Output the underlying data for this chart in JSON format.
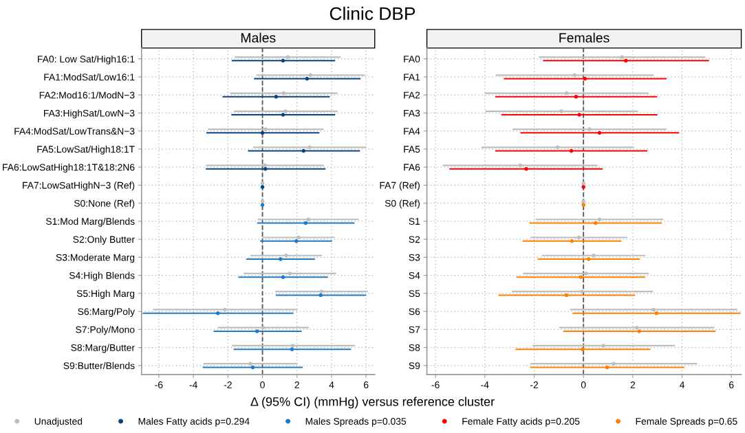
{
  "chart_data": [
    {
      "type": "scatter",
      "orientation": "horizontal",
      "title": "Males",
      "xlabel": "Δ (95% CI) (mmHg) versus reference cluster",
      "annotations": [
        "Clinic DBP"
      ],
      "categories": [
        "FA0: Low Sat/High16:1",
        "FA1:ModSat/Low16:1",
        "FA2:Mod16:1/ModN−3",
        "FA3:HighSat/LowN−3",
        "FA4:ModSat/LowTrans&N−3",
        "FA5:LowSat/High18:1T",
        "FA6:LowSatHigh18:1T&18:2N6",
        "FA7:LowSatHighN−3 (Ref)",
        "S0:None (Ref)",
        "S1:Mod Marg/Blends",
        "S2:Only Butter",
        "S3:Moderate Marg",
        "S4:High Blends",
        "S5:High Marg",
        "S6:Marg/Poly",
        "S7:Poly/Mono",
        "S8:Marg/Butter",
        "S9:Butter/Blends"
      ],
      "xlim": [
        -7,
        6.5
      ],
      "xticks": [
        -6,
        -4,
        -2,
        0,
        2,
        4,
        6
      ],
      "grid": true,
      "legend": "bottom",
      "marker": "circle",
      "ref_lines": [
        {
          "axis": "x",
          "value": 0,
          "color": "#555555",
          "line_style": "dashed"
        }
      ],
      "series": [
        {
          "name": "Unadjusted",
          "color": "#bebebe",
          "values": [
            1.47,
            2.78,
            1.23,
            1.33,
            0.18,
            2.73,
            0.14,
            0,
            0,
            2.66,
            2.08,
            1.37,
            1.58,
            3.41,
            -2.17,
            0.04,
            1.75,
            -0.7
          ],
          "errors": [
            [
              -1.61,
              4.52
            ],
            [
              -0.35,
              5.93
            ],
            [
              -1.87,
              4.35
            ],
            [
              -1.65,
              4.35
            ],
            [
              -3.16,
              3.53
            ],
            [
              -0.53,
              5.99
            ],
            [
              -3.28,
              3.56
            ],
            null,
            null,
            [
              -0.28,
              5.58
            ],
            [
              0,
              4.18
            ],
            [
              -0.7,
              3.45
            ],
            [
              -1.09,
              4.26
            ],
            [
              0.74,
              6.1
            ],
            [
              -6.34,
              2.03
            ],
            [
              -2.59,
              2.69
            ],
            [
              -1.78,
              5.36
            ],
            [
              -3.42,
              2.03
            ]
          ]
        },
        {
          "name": "Males Fatty acids p=0.294",
          "color": "#08457e",
          "values": [
            1.19,
            2.58,
            0.79,
            1.19,
            0,
            2.38,
            0.17,
            0,
            null,
            null,
            null,
            null,
            null,
            null,
            null,
            null,
            null,
            null
          ],
          "errors": [
            [
              -1.78,
              4.21
            ],
            [
              -0.49,
              5.68
            ],
            [
              -2.31,
              3.9
            ],
            [
              -1.8,
              4.21
            ],
            [
              -3.25,
              3.3
            ],
            [
              -0.84,
              5.65
            ],
            [
              -3.28,
              3.65
            ],
            null,
            null,
            null,
            null,
            null,
            null,
            null,
            null,
            null,
            null,
            null
          ]
        },
        {
          "name": "Males Spreads p=0.035",
          "color": "#1f78c8",
          "values": [
            null,
            null,
            null,
            null,
            null,
            null,
            null,
            null,
            0,
            2.5,
            1.96,
            1.05,
            1.19,
            3.37,
            -2.58,
            -0.31,
            1.71,
            -0.56
          ],
          "errors": [
            null,
            null,
            null,
            null,
            null,
            null,
            null,
            null,
            null,
            [
              -0.31,
              5.33
            ],
            [
              -0.14,
              4.03
            ],
            [
              -0.94,
              3.04
            ],
            [
              -1.4,
              3.79
            ],
            [
              0.77,
              6.0
            ],
            [
              -6.93,
              1.8
            ],
            [
              -2.83,
              2.27
            ],
            [
              -1.67,
              5.13
            ],
            [
              -3.46,
              2.33
            ]
          ]
        }
      ]
    },
    {
      "type": "scatter",
      "orientation": "horizontal",
      "title": "Females",
      "categories": [
        "FA0",
        "FA1",
        "FA2",
        "FA3",
        "FA4",
        "FA5",
        "FA6",
        "FA7 (Ref)",
        "S0 (Ref)",
        "S1",
        "S2",
        "S3",
        "S4",
        "S5",
        "S6",
        "S7",
        "S8",
        "S9"
      ],
      "xlim": [
        -6.35,
        6.4
      ],
      "xticks": [
        -6,
        -4,
        -2,
        0,
        2,
        4,
        6
      ],
      "grid": true,
      "legend": "bottom",
      "marker": "circle",
      "ref_lines": [
        {
          "axis": "x",
          "value": 0,
          "color": "#555555",
          "line_style": "dashed"
        }
      ],
      "series": [
        {
          "color": "#bebebe",
          "values": [
            1.56,
            -0.36,
            -0.69,
            -0.89,
            0.24,
            -1.05,
            -2.56,
            0,
            0,
            0.65,
            -0.19,
            0.41,
            0.1,
            -0.06,
            2.84,
            2.16,
            0.81,
            1.22
          ],
          "errors": [
            [
              -1.81,
              4.94
            ],
            [
              -3.56,
              2.85
            ],
            [
              -4.0,
              2.65
            ],
            [
              -3.97,
              2.21
            ],
            [
              -2.88,
              3.37
            ],
            [
              -4.14,
              2.05
            ],
            [
              -5.71,
              0.58
            ],
            null,
            null,
            [
              -1.94,
              3.24
            ],
            [
              -2.15,
              1.78
            ],
            [
              -1.69,
              2.51
            ],
            [
              -2.45,
              2.65
            ],
            [
              -2.91,
              2.82
            ],
            [
              -0.55,
              6.24
            ],
            [
              -0.99,
              5.31
            ],
            [
              -2.07,
              3.71
            ],
            [
              -2.15,
              4.61
            ]
          ]
        },
        {
          "name": "Female Fatty acids p=0.205",
          "color": "#ff0000",
          "values": [
            1.72,
            0.06,
            -0.3,
            -0.17,
            0.65,
            -0.49,
            -2.32,
            0,
            null,
            null,
            null,
            null,
            null,
            null,
            null,
            null,
            null,
            null
          ],
          "errors": [
            [
              -1.64,
              5.09
            ],
            [
              -3.23,
              3.37
            ],
            [
              -3.58,
              2.99
            ],
            [
              -3.33,
              3.0
            ],
            [
              -2.56,
              3.88
            ],
            [
              -3.58,
              2.59
            ],
            [
              -5.44,
              0.78
            ],
            null,
            null,
            null,
            null,
            null,
            null,
            null,
            null,
            null,
            null,
            null
          ]
        },
        {
          "name": "Female Spreads p=0.65",
          "color": "#ff7f00",
          "values": [
            null,
            null,
            null,
            null,
            null,
            null,
            null,
            null,
            0,
            0.49,
            -0.47,
            0.21,
            -0.11,
            -0.69,
            2.96,
            2.26,
            -0.03,
            0.96
          ],
          "errors": [
            null,
            null,
            null,
            null,
            null,
            null,
            null,
            null,
            null,
            [
              -2.19,
              3.18
            ],
            [
              -2.47,
              1.54
            ],
            [
              -1.86,
              2.29
            ],
            [
              -2.72,
              2.51
            ],
            [
              -3.45,
              2.09
            ],
            [
              -0.44,
              6.37
            ],
            [
              -0.82,
              5.36
            ],
            [
              -2.76,
              2.72
            ],
            [
              -2.16,
              4.09
            ]
          ]
        }
      ]
    }
  ]
}
